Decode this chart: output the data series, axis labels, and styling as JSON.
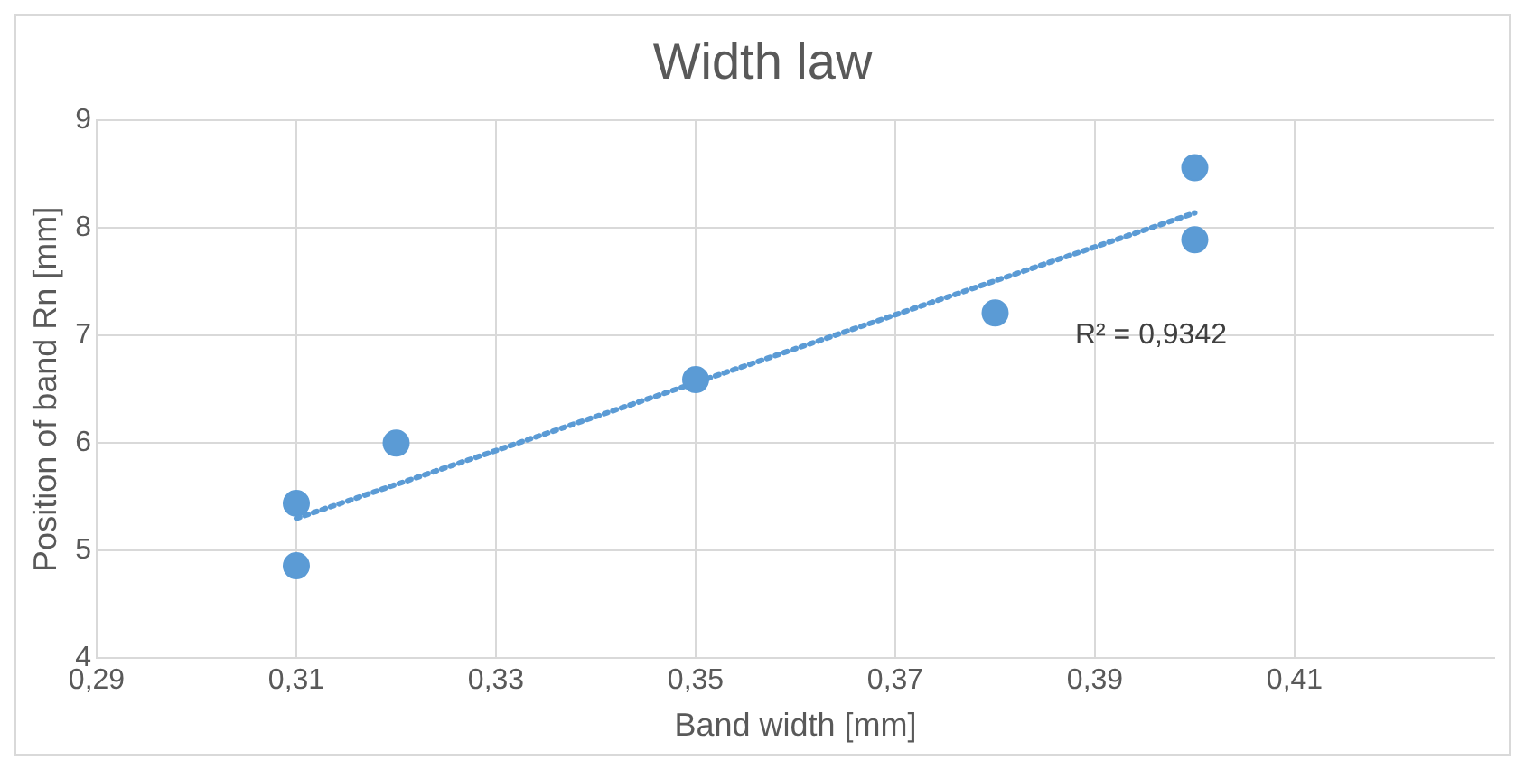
{
  "chart_data": {
    "type": "scatter",
    "title": "Width law",
    "xlabel": "Band width [mm]",
    "ylabel": "Position of band Rn [mm]",
    "xlim": [
      0.29,
      0.43
    ],
    "xticks": [
      {
        "value": 0.29,
        "label": "0,29"
      },
      {
        "value": 0.31,
        "label": "0,31"
      },
      {
        "value": 0.33,
        "label": "0,33"
      },
      {
        "value": 0.35,
        "label": "0,35"
      },
      {
        "value": 0.37,
        "label": "0,37"
      },
      {
        "value": 0.39,
        "label": "0,39"
      },
      {
        "value": 0.41,
        "label": "0,41"
      }
    ],
    "ylim": [
      4,
      9
    ],
    "yticks": [
      4,
      5,
      6,
      7,
      8,
      9
    ],
    "grid": true,
    "legend": false,
    "series": [
      {
        "color": "#5b9bd5",
        "marker": "circle",
        "x": [
          0.31,
          0.31,
          0.32,
          0.35,
          0.38,
          0.4,
          0.4
        ],
        "values": [
          5.44,
          4.86,
          6.0,
          6.59,
          7.21,
          8.56,
          7.89
        ]
      },
      {
        "type": "line",
        "marker": "none",
        "line_style": "dotted",
        "color": "#5b9bd5",
        "x": [
          0.31,
          0.4
        ],
        "values": [
          5.3,
          8.14
        ]
      }
    ],
    "annotations": [
      "R² = 0,9342"
    ]
  }
}
